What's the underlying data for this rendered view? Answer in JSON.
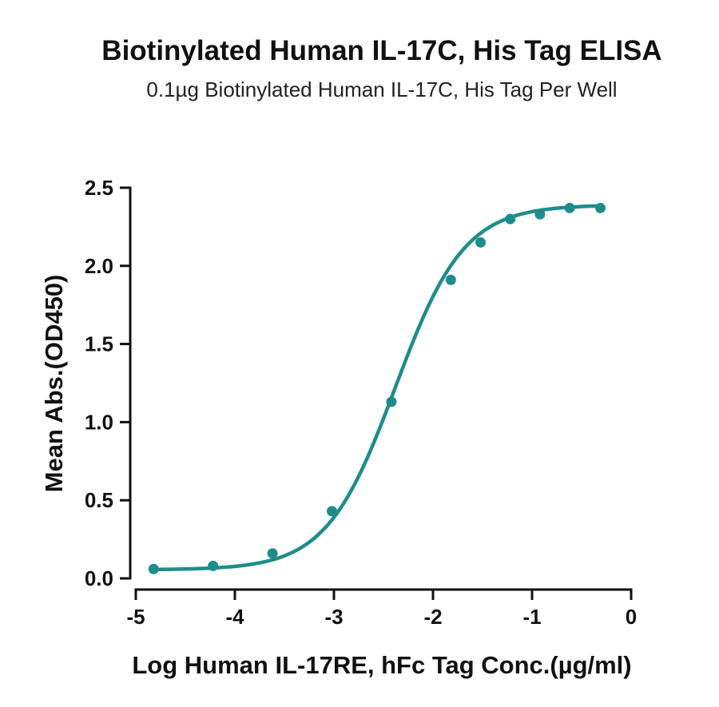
{
  "chart_data": {
    "type": "scatter",
    "title": "Biotinylated Human IL-17C, His Tag ELISA",
    "subtitle": "0.1µg Biotinylated Human IL-17C, His Tag Per Well",
    "xlabel": "Log Human IL-17RE, hFc Tag Conc.(µg/ml)",
    "ylabel": "Mean Abs.(OD450)",
    "xlim": [
      -5,
      0
    ],
    "ylim": [
      0,
      2.5
    ],
    "xticks": [
      -5,
      -4,
      -3,
      -2,
      -1,
      0
    ],
    "yticks": [
      0,
      0.5,
      1.0,
      1.5,
      2.0,
      2.5
    ],
    "xtick_labels": [
      "-5",
      "-4",
      "-3",
      "-2",
      "-1",
      "0"
    ],
    "ytick_labels": [
      "0.0",
      "0.5",
      "1.0",
      "1.5",
      "2.0",
      "2.5"
    ],
    "grid": false,
    "color": "#1e8c8c",
    "fit": "four-parameter logistic",
    "series": [
      {
        "x": [
          -4.82,
          -4.22,
          -3.62,
          -3.02,
          -2.42,
          -1.82,
          -1.52,
          -1.22,
          -0.92,
          -0.62,
          -0.31
        ],
        "y": [
          0.06,
          0.08,
          0.16,
          0.43,
          1.13,
          1.91,
          2.15,
          2.3,
          2.33,
          2.37,
          2.37
        ]
      }
    ]
  }
}
